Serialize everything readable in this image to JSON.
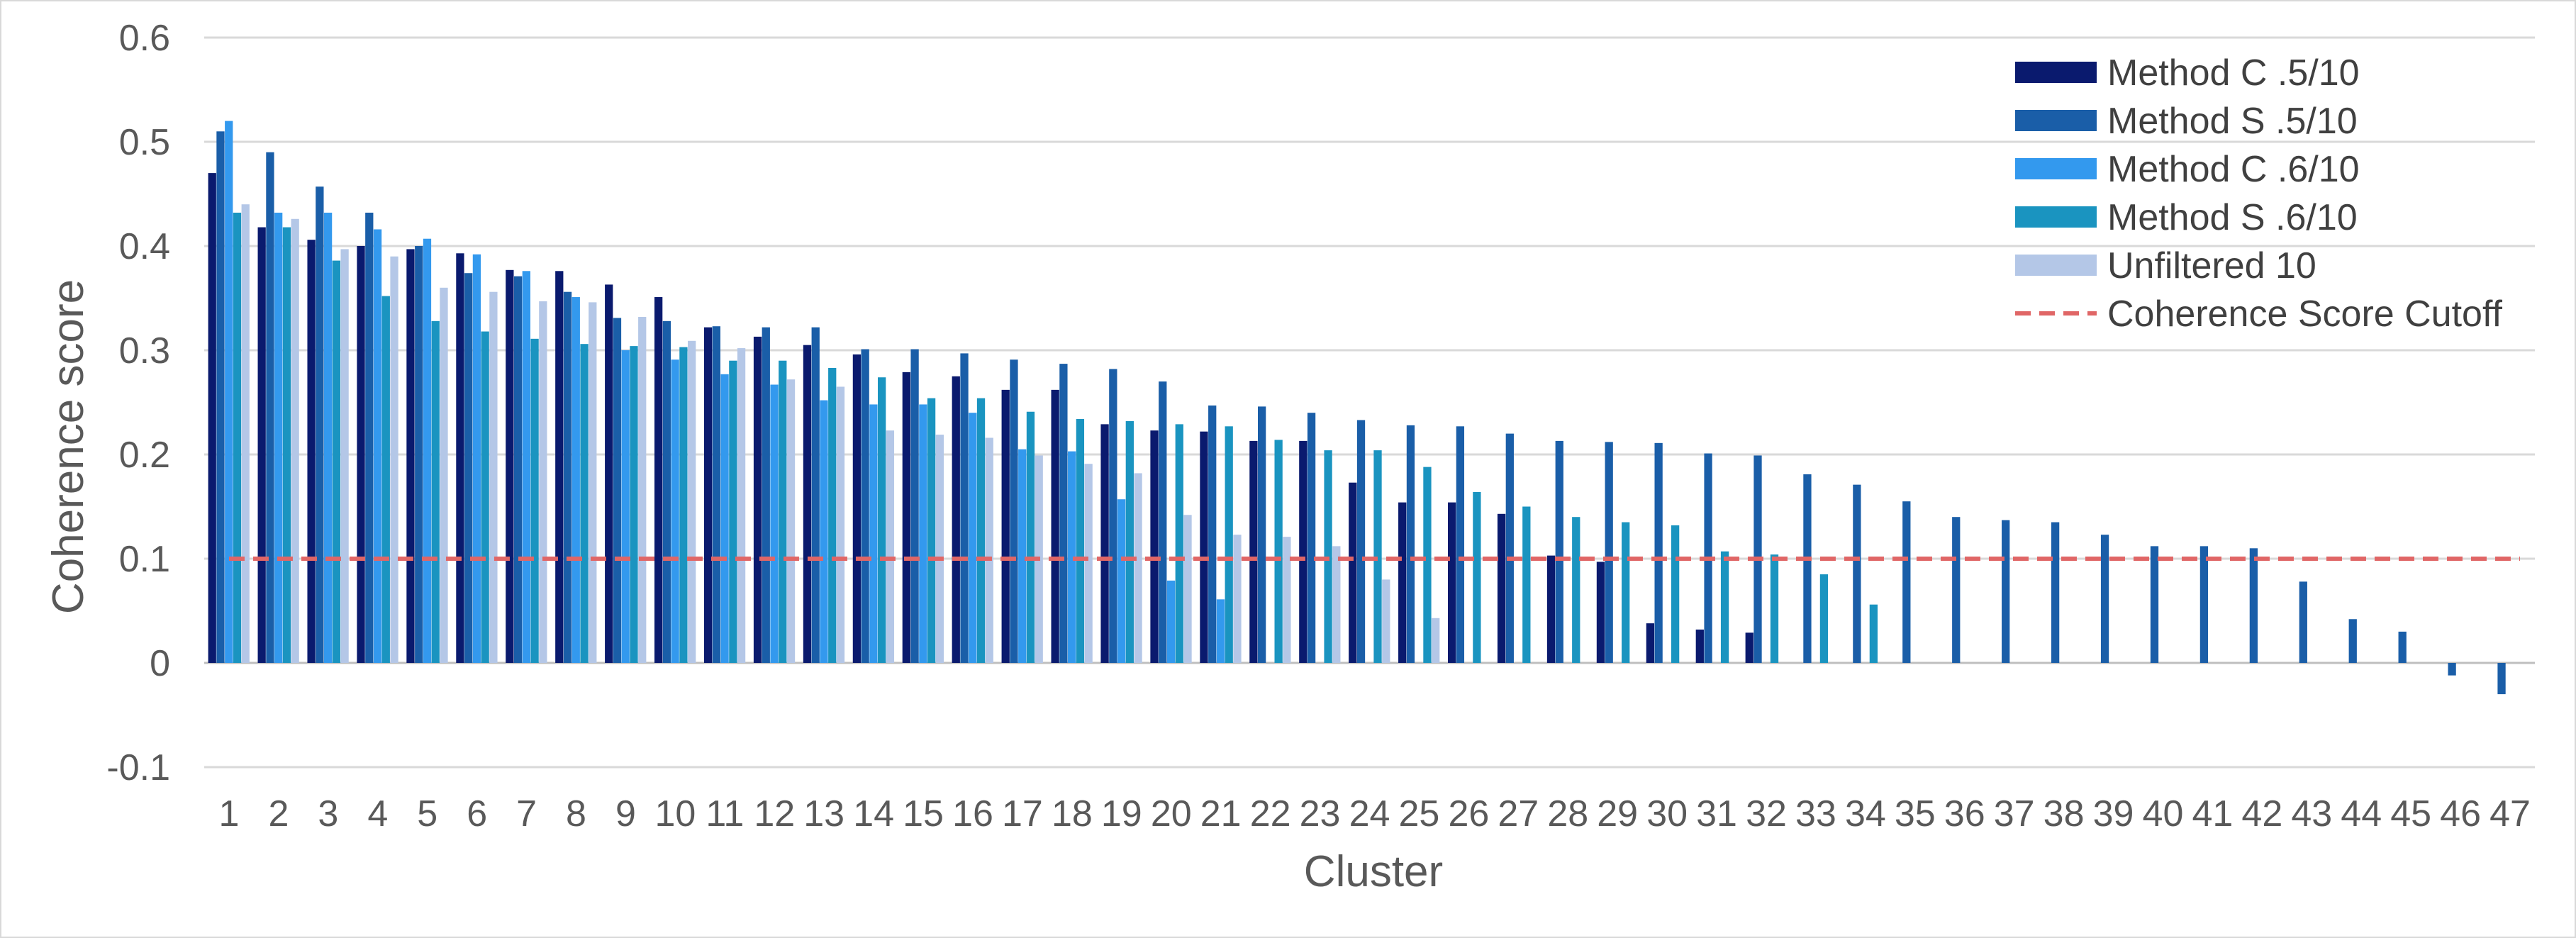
{
  "chart_data": {
    "type": "bar",
    "title": "",
    "xlabel": "Cluster",
    "ylabel": "Coherence score",
    "ylim": [
      -0.1,
      0.6
    ],
    "yticks": [
      -0.1,
      0,
      0.1,
      0.2,
      0.3,
      0.4,
      0.5,
      0.6
    ],
    "ytick_labels": [
      "-0.1",
      "0",
      "0.1",
      "0.2",
      "0.3",
      "0.4",
      "0.5",
      "0.6"
    ],
    "grid": true,
    "legend_position": "top-right",
    "categories": [
      "1",
      "2",
      "3",
      "4",
      "5",
      "6",
      "7",
      "8",
      "9",
      "10",
      "11",
      "12",
      "13",
      "14",
      "15",
      "16",
      "17",
      "18",
      "19",
      "20",
      "21",
      "22",
      "23",
      "24",
      "25",
      "26",
      "27",
      "28",
      "29",
      "30",
      "31",
      "32",
      "33",
      "34",
      "35",
      "36",
      "37",
      "38",
      "39",
      "40",
      "41",
      "42",
      "43",
      "44",
      "45",
      "46",
      "47"
    ],
    "series": [
      {
        "name": "Method C .5/10",
        "color": "#0a1a6e",
        "values": [
          0.47,
          0.418,
          0.406,
          0.4,
          0.397,
          0.393,
          0.377,
          0.376,
          0.363,
          0.351,
          0.322,
          0.313,
          0.305,
          0.296,
          0.279,
          0.275,
          0.262,
          0.262,
          0.229,
          0.223,
          0.222,
          0.213,
          0.213,
          0.173,
          0.154,
          0.154,
          0.143,
          0.103,
          0.097,
          0.038,
          0.032,
          0.029,
          null,
          null,
          null,
          null,
          null,
          null,
          null,
          null,
          null,
          null,
          null,
          null,
          null,
          null,
          null
        ]
      },
      {
        "name": "Method S .5/10",
        "color": "#1a5ea8",
        "values": [
          0.51,
          0.49,
          0.457,
          0.432,
          0.4,
          0.374,
          0.371,
          0.356,
          0.331,
          0.328,
          0.323,
          0.322,
          0.322,
          0.301,
          0.301,
          0.297,
          0.291,
          0.287,
          0.282,
          0.27,
          0.247,
          0.246,
          0.24,
          0.233,
          0.228,
          0.227,
          0.22,
          0.213,
          0.212,
          0.211,
          0.201,
          0.199,
          0.181,
          0.171,
          0.155,
          0.14,
          0.137,
          0.135,
          0.123,
          0.112,
          0.112,
          0.11,
          0.078,
          0.042,
          0.03,
          -0.012,
          -0.03
        ]
      },
      {
        "name": "Method C .6/10",
        "color": "#3399ee",
        "values": [
          0.52,
          0.432,
          0.432,
          0.416,
          0.407,
          0.392,
          0.376,
          0.351,
          0.3,
          0.291,
          0.277,
          0.267,
          0.252,
          0.248,
          0.248,
          0.24,
          0.205,
          0.203,
          0.157,
          0.079,
          0.061,
          null,
          null,
          null,
          null,
          null,
          null,
          null,
          null,
          null,
          null,
          null,
          null,
          null,
          null,
          null,
          null,
          null,
          null,
          null,
          null,
          null,
          null,
          null,
          null,
          null,
          null
        ]
      },
      {
        "name": "Method S .6/10",
        "color": "#1a94c0",
        "values": [
          0.432,
          0.418,
          0.386,
          0.352,
          0.328,
          0.318,
          0.311,
          0.306,
          0.304,
          0.303,
          0.29,
          0.29,
          0.283,
          0.274,
          0.254,
          0.254,
          0.241,
          0.234,
          0.232,
          0.229,
          0.227,
          0.214,
          0.204,
          0.204,
          0.188,
          0.164,
          0.15,
          0.14,
          0.135,
          0.132,
          0.107,
          0.104,
          0.085,
          0.056,
          null,
          null,
          null,
          null,
          null,
          null,
          null,
          null,
          null,
          null,
          null,
          null,
          null
        ]
      },
      {
        "name": "Unfiltered 10",
        "color": "#b4c7e7",
        "values": [
          0.44,
          0.426,
          0.397,
          0.39,
          0.36,
          0.356,
          0.347,
          0.346,
          0.332,
          0.309,
          0.302,
          0.272,
          0.265,
          0.223,
          0.219,
          0.216,
          0.199,
          0.191,
          0.182,
          0.142,
          0.123,
          0.121,
          0.112,
          0.08,
          0.043,
          null,
          null,
          null,
          null,
          null,
          null,
          null,
          null,
          null,
          null,
          null,
          null,
          null,
          null,
          null,
          null,
          null,
          null,
          null,
          null,
          null,
          null
        ]
      }
    ],
    "reference_line": {
      "name": "Coherence Score Cutoff",
      "value": 0.1,
      "color": "#e06666",
      "style": "dashed"
    }
  }
}
